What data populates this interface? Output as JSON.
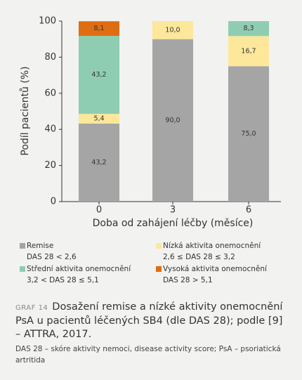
{
  "chart_data": {
    "type": "stacked-bar",
    "y_label": "Podíl pacientů (%)",
    "x_label": "Doba od zahájení léčby (měsíce)",
    "categories": [
      "0",
      "3",
      "6"
    ],
    "ylim": [
      0,
      100
    ],
    "yticks": [
      0,
      20,
      40,
      60,
      80,
      100
    ],
    "series": [
      {
        "name": "Remise",
        "description": "DAS 28 < 2,6",
        "color": "#a5a5a5",
        "values": [
          43.2,
          90.0,
          75.0
        ],
        "value_labels": [
          "43,2",
          "90,0",
          "75,0"
        ]
      },
      {
        "name": "Nízká aktivita onemocnění",
        "description": "2,6 ≤ DAS 28 ≤ 3,2",
        "color": "#fde79a",
        "values": [
          5.4,
          10.0,
          16.7
        ],
        "value_labels": [
          "5,4",
          "10,0",
          "16,7"
        ]
      },
      {
        "name": "Střední aktivita onemocnění",
        "description": "3,2 < DAS 28 ≤ 5,1",
        "color": "#8fcdb2",
        "values": [
          43.2,
          null,
          8.3
        ],
        "value_labels": [
          "43,2",
          null,
          "8,3"
        ]
      },
      {
        "name": "Vysoká aktivita onemocnění",
        "description": "DAS 28 > 5,1",
        "color": "#df6d12",
        "values": [
          8.1,
          null,
          null
        ],
        "value_labels": [
          "8,1",
          null,
          null
        ]
      }
    ]
  },
  "caption": {
    "label": "GRAF 14",
    "title": "Dosažení remise a nízké aktivity onemocnění PsA u pacientů léčených SB4 (dle DAS 28); podle [9] – ATTRA, 2017.",
    "note": "DAS 28 – skóre aktivity nemoci, disease activity score; PsA – psoriatická artritida"
  }
}
